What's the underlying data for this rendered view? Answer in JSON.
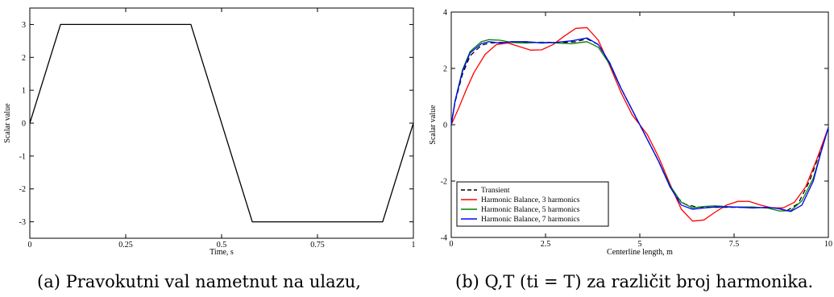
{
  "chart_data": [
    {
      "type": "line",
      "title": "",
      "xlabel": "Time, s",
      "ylabel": "Scalar value",
      "xlim": [
        0,
        1
      ],
      "ylim": [
        -3.5,
        3.5
      ],
      "xticks": [
        0,
        0.25,
        0.5,
        0.75,
        1
      ],
      "xtick_labels": [
        "0",
        "0.25",
        "0.5",
        "0.75",
        "1"
      ],
      "yticks": [
        -3,
        -2,
        -1,
        0,
        1,
        2,
        3
      ],
      "ytick_labels": [
        "-3",
        "-2",
        "-1",
        "0",
        "1",
        "2",
        "3"
      ],
      "grid": false,
      "series": [
        {
          "color": "#000000",
          "dash": "solid",
          "x": [
            0,
            0.08,
            0.42,
            0.58,
            0.92,
            1.0
          ],
          "y": [
            0,
            3,
            3,
            -3,
            -3,
            0
          ]
        }
      ],
      "caption": "(a) Pravokutni val nametnut na ulazu,"
    },
    {
      "type": "line",
      "title": "",
      "xlabel": "Centerline length, m",
      "ylabel": "Scalar value",
      "xlim": [
        0,
        10
      ],
      "ylim": [
        -4,
        4
      ],
      "xticks": [
        0,
        2.5,
        5,
        7.5,
        10
      ],
      "xtick_labels": [
        "0",
        "2.5",
        "5",
        "7.5",
        "10"
      ],
      "yticks": [
        -4,
        -2,
        0,
        2,
        4
      ],
      "ytick_labels": [
        "-4",
        "-2",
        "0",
        "2",
        "4"
      ],
      "grid": false,
      "legend_position": "lower-left",
      "series": [
        {
          "name": "Transient",
          "color": "#000000",
          "dash": "dashed",
          "x": [
            0,
            0.1,
            0.3,
            0.5,
            0.8,
            1.0,
            1.3,
            1.6,
            2.0,
            2.5,
            3.0,
            3.3,
            3.6,
            3.9,
            4.2,
            4.5,
            5.0,
            5.5,
            5.8,
            6.0,
            6.2,
            6.5,
            7.0,
            7.5,
            8.0,
            8.3,
            8.6,
            8.9,
            9.2,
            9.5,
            9.8,
            10.0
          ],
          "y": [
            0,
            0.8,
            1.8,
            2.45,
            2.82,
            2.9,
            2.92,
            2.93,
            2.93,
            2.93,
            2.92,
            2.95,
            3.05,
            2.85,
            2.2,
            1.3,
            0,
            -1.3,
            -2.2,
            -2.6,
            -2.82,
            -2.92,
            -2.93,
            -2.93,
            -2.93,
            -2.93,
            -2.95,
            -3.05,
            -2.8,
            -2.0,
            -0.9,
            -0.1
          ]
        },
        {
          "name": "Harmonic Balance, 3 harmonics",
          "color": "#ff0000",
          "dash": "solid",
          "x": [
            0,
            0.2,
            0.4,
            0.6,
            0.9,
            1.2,
            1.5,
            1.8,
            2.1,
            2.4,
            2.7,
            3.0,
            3.3,
            3.6,
            3.9,
            4.2,
            4.5,
            4.8,
            5.0,
            5.2,
            5.5,
            5.8,
            6.1,
            6.4,
            6.7,
            7.0,
            7.3,
            7.6,
            7.9,
            8.2,
            8.5,
            8.8,
            9.1,
            9.4,
            9.7,
            10.0
          ],
          "y": [
            0,
            0.6,
            1.25,
            1.85,
            2.5,
            2.85,
            2.9,
            2.78,
            2.65,
            2.66,
            2.85,
            3.15,
            3.42,
            3.45,
            3.0,
            2.1,
            1.15,
            0.35,
            0,
            -0.35,
            -1.15,
            -2.1,
            -3.0,
            -3.42,
            -3.38,
            -3.1,
            -2.85,
            -2.72,
            -2.72,
            -2.85,
            -2.95,
            -2.95,
            -2.75,
            -2.2,
            -1.2,
            -0.1
          ]
        },
        {
          "name": "Harmonic Balance, 5 harmonics",
          "color": "#008000",
          "dash": "solid",
          "x": [
            0,
            0.1,
            0.3,
            0.5,
            0.8,
            1.0,
            1.3,
            1.6,
            2.0,
            2.4,
            2.8,
            3.2,
            3.6,
            3.9,
            4.2,
            4.5,
            5.0,
            5.5,
            5.8,
            6.1,
            6.4,
            6.7,
            7.0,
            7.5,
            8.0,
            8.4,
            8.7,
            9.0,
            9.3,
            9.6,
            9.8,
            10.0
          ],
          "y": [
            0,
            0.85,
            1.95,
            2.6,
            2.95,
            3.02,
            3.0,
            2.92,
            2.9,
            2.93,
            2.9,
            2.88,
            2.95,
            2.75,
            2.15,
            1.3,
            0,
            -1.3,
            -2.15,
            -2.75,
            -2.95,
            -2.9,
            -2.88,
            -2.92,
            -2.92,
            -2.96,
            -3.06,
            -3.05,
            -2.7,
            -1.9,
            -1.0,
            -0.1
          ]
        },
        {
          "name": "Harmonic Balance, 7 harmonics",
          "color": "#0000ff",
          "dash": "solid",
          "x": [
            0,
            0.1,
            0.3,
            0.5,
            0.8,
            1.0,
            1.3,
            1.6,
            2.0,
            2.4,
            2.8,
            3.2,
            3.6,
            3.9,
            4.2,
            4.5,
            5.0,
            5.5,
            5.8,
            6.1,
            6.4,
            6.7,
            7.0,
            7.5,
            8.0,
            8.4,
            8.7,
            9.0,
            9.3,
            9.6,
            9.8,
            10.0
          ],
          "y": [
            0,
            0.82,
            1.9,
            2.55,
            2.88,
            2.95,
            2.9,
            2.95,
            2.95,
            2.9,
            2.93,
            2.98,
            3.08,
            2.85,
            2.2,
            1.3,
            0,
            -1.3,
            -2.2,
            -2.85,
            -3.0,
            -2.95,
            -2.92,
            -2.92,
            -2.95,
            -2.93,
            -2.98,
            -3.08,
            -2.85,
            -2.0,
            -1.0,
            -0.1
          ]
        }
      ],
      "caption": "(b) Q,T (ti = T) za različit broj harmonika."
    }
  ]
}
